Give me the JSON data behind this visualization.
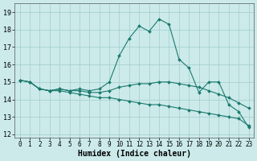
{
  "title": "",
  "xlabel": "Humidex (Indice chaleur)",
  "ylabel": "",
  "background_color": "#cceaea",
  "line_color": "#1a7a6e",
  "xlim": [
    -0.5,
    23.5
  ],
  "ylim": [
    11.8,
    19.5
  ],
  "yticks": [
    12,
    13,
    14,
    15,
    16,
    17,
    18,
    19
  ],
  "xticks": [
    0,
    1,
    2,
    3,
    4,
    5,
    6,
    7,
    8,
    9,
    10,
    11,
    12,
    13,
    14,
    15,
    16,
    17,
    18,
    19,
    20,
    21,
    22,
    23
  ],
  "lines": [
    {
      "x": [
        0,
        1,
        2,
        3,
        4,
        5,
        6,
        7,
        8,
        9,
        10,
        11,
        12,
        13,
        14,
        15,
        16,
        17,
        18,
        19,
        20,
        21,
        22,
        23
      ],
      "y": [
        15.1,
        15.0,
        14.6,
        14.5,
        14.6,
        14.5,
        14.6,
        14.5,
        14.6,
        15.0,
        16.5,
        17.5,
        18.2,
        17.9,
        18.6,
        18.3,
        16.3,
        15.8,
        14.4,
        15.0,
        15.0,
        13.7,
        13.3,
        12.4
      ]
    },
    {
      "x": [
        0,
        1,
        2,
        3,
        4,
        5,
        6,
        7,
        8,
        9,
        10,
        11,
        12,
        13,
        14,
        15,
        16,
        17,
        18,
        19,
        20,
        21,
        22,
        23
      ],
      "y": [
        15.1,
        15.0,
        14.6,
        14.5,
        14.6,
        14.5,
        14.5,
        14.4,
        14.4,
        14.5,
        14.7,
        14.8,
        14.9,
        14.9,
        15.0,
        15.0,
        14.9,
        14.8,
        14.7,
        14.5,
        14.3,
        14.1,
        13.8,
        13.5
      ]
    },
    {
      "x": [
        0,
        1,
        2,
        3,
        4,
        5,
        6,
        7,
        8,
        9,
        10,
        11,
        12,
        13,
        14,
        15,
        16,
        17,
        18,
        19,
        20,
        21,
        22,
        23
      ],
      "y": [
        15.1,
        15.0,
        14.6,
        14.5,
        14.5,
        14.4,
        14.3,
        14.2,
        14.1,
        14.1,
        14.0,
        13.9,
        13.8,
        13.7,
        13.7,
        13.6,
        13.5,
        13.4,
        13.3,
        13.2,
        13.1,
        13.0,
        12.9,
        12.5
      ]
    }
  ],
  "marker": "D",
  "marker_size": 2.0,
  "linewidth": 0.8,
  "grid_color": "#a0cccc",
  "tick_fontsize": 5.5,
  "xlabel_fontsize": 7.0
}
